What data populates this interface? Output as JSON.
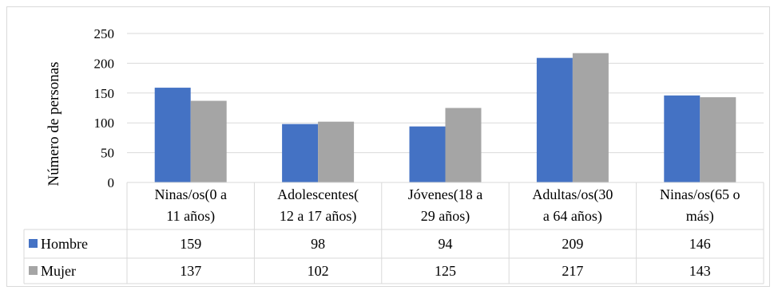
{
  "chart_data": {
    "type": "bar",
    "ylabel": "Número de personas",
    "ylim": [
      0,
      250
    ],
    "yticks": [
      0,
      50,
      100,
      150,
      200,
      250
    ],
    "grid": true,
    "legend": "data-table",
    "categories": [
      [
        "Ninas/os(0 a",
        "11 años)"
      ],
      [
        "Adolescentes(",
        "12 a 17 años)"
      ],
      [
        "Jóvenes(18 a",
        "29 años)"
      ],
      [
        "Adultas/os(30",
        "a 64 años)"
      ],
      [
        "Ninas/os(65 o",
        "más)"
      ]
    ],
    "series": [
      {
        "name": "Hombre",
        "color": "#4472c4",
        "values": [
          159,
          98,
          94,
          209,
          146
        ]
      },
      {
        "name": "Mujer",
        "color": "#a5a5a5",
        "values": [
          137,
          102,
          125,
          217,
          143
        ]
      }
    ]
  }
}
